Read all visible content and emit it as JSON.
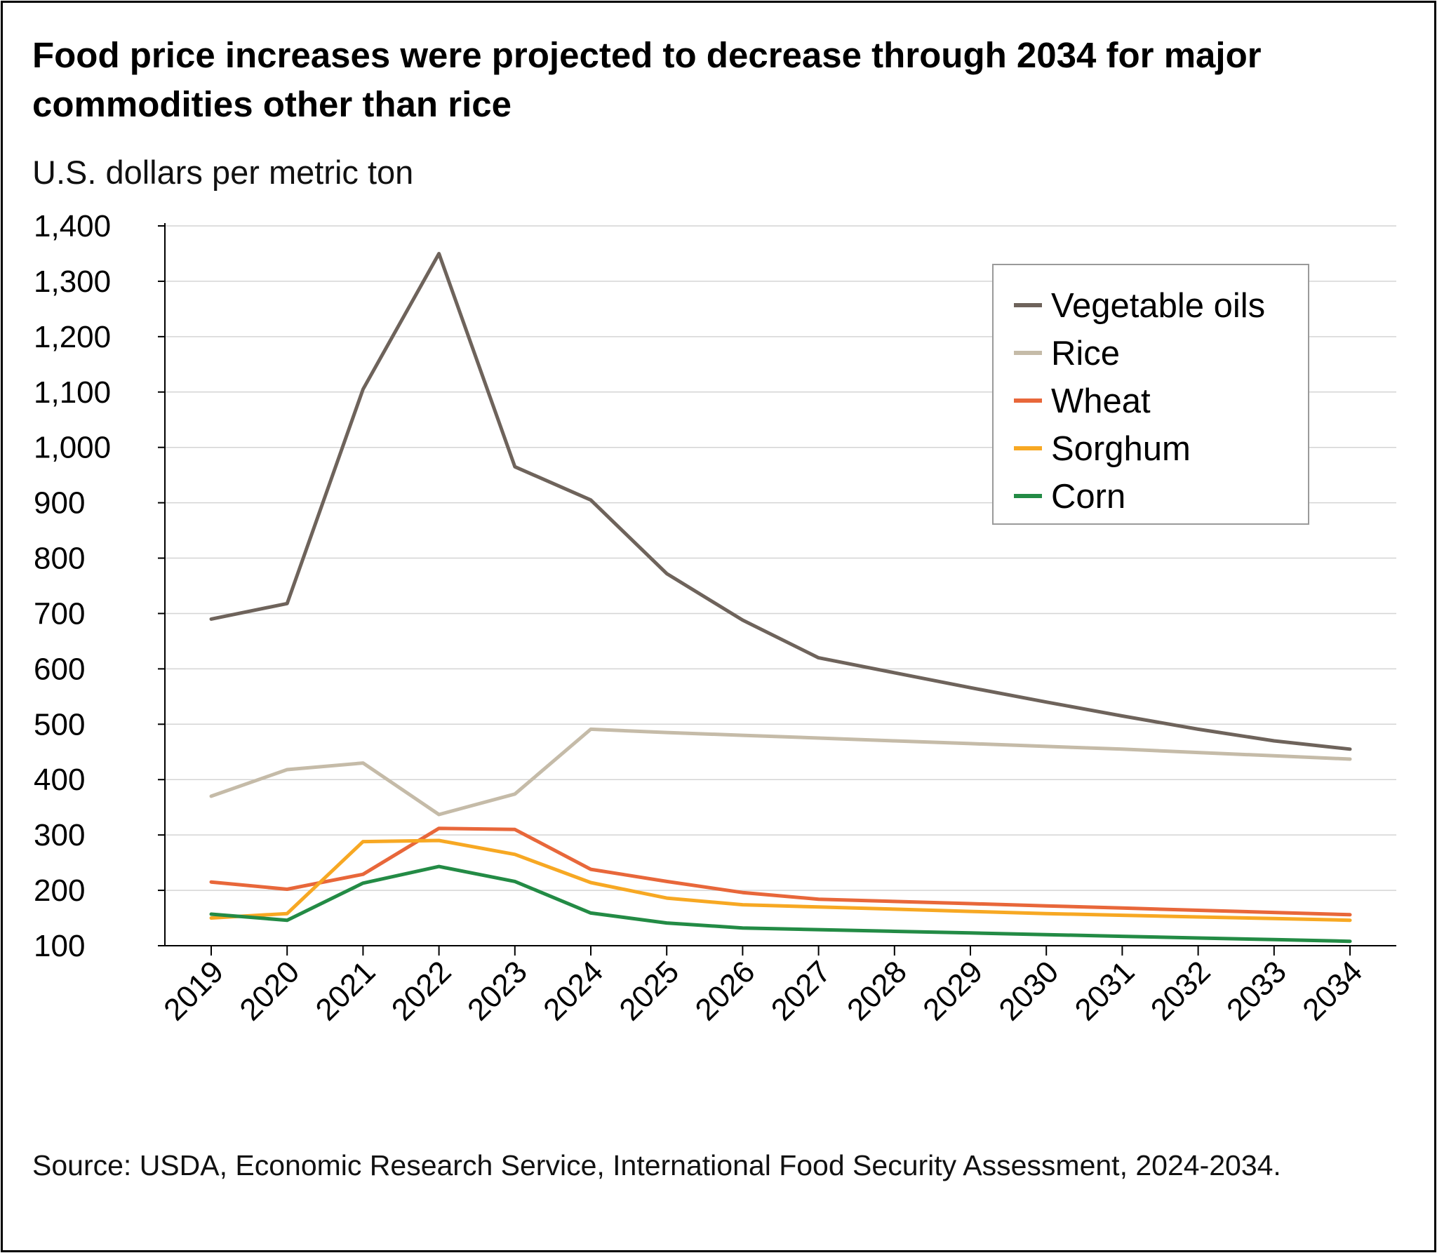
{
  "chart_data": {
    "type": "line",
    "title": "Food price increases were projected to decrease through 2034 for major commodities other than rice",
    "ylabel": "U.S. dollars per metric ton",
    "xlabel": "",
    "source": "Source: USDA, Economic Research Service, International Food Security Assessment, 2024-2034.",
    "x": [
      "2019",
      "2020",
      "2021",
      "2022",
      "2023",
      "2024",
      "2025",
      "2026",
      "2027",
      "2028",
      "2029",
      "2030",
      "2031",
      "2032",
      "2033",
      "2034"
    ],
    "ylim": [
      100,
      1400
    ],
    "yticks": [
      100,
      200,
      300,
      400,
      500,
      600,
      700,
      800,
      900,
      1000,
      1100,
      1200,
      1300,
      1400
    ],
    "ytick_labels": [
      "100",
      "200",
      "300",
      "400",
      "500",
      "600",
      "700",
      "800",
      "900",
      "1,000",
      "1,100",
      "1,200",
      "1,300",
      "1,400"
    ],
    "grid": true,
    "legend_position": "top-right",
    "series": [
      {
        "name": "Vegetable oils",
        "color": "#6e635b",
        "values": [
          690,
          718,
          1105,
          1350,
          965,
          905,
          772,
          688,
          620,
          593,
          566,
          540,
          515,
          491,
          470,
          455
        ]
      },
      {
        "name": "Rice",
        "color": "#c5bba8",
        "values": [
          370,
          418,
          430,
          337,
          374,
          491,
          485,
          480,
          475,
          470,
          465,
          460,
          455,
          449,
          443,
          437
        ]
      },
      {
        "name": "Wheat",
        "color": "#e8673a",
        "values": [
          215,
          202,
          229,
          312,
          310,
          238,
          216,
          196,
          184,
          180,
          176,
          172,
          168,
          164,
          160,
          156
        ]
      },
      {
        "name": "Sorghum",
        "color": "#f7a823",
        "values": [
          150,
          158,
          288,
          290,
          265,
          214,
          186,
          174,
          170,
          166,
          162,
          158,
          155,
          152,
          149,
          146
        ]
      },
      {
        "name": "Corn",
        "color": "#238b45",
        "values": [
          157,
          146,
          213,
          243,
          216,
          159,
          141,
          132,
          129,
          126,
          123,
          120,
          117,
          114,
          111,
          108
        ]
      }
    ]
  }
}
